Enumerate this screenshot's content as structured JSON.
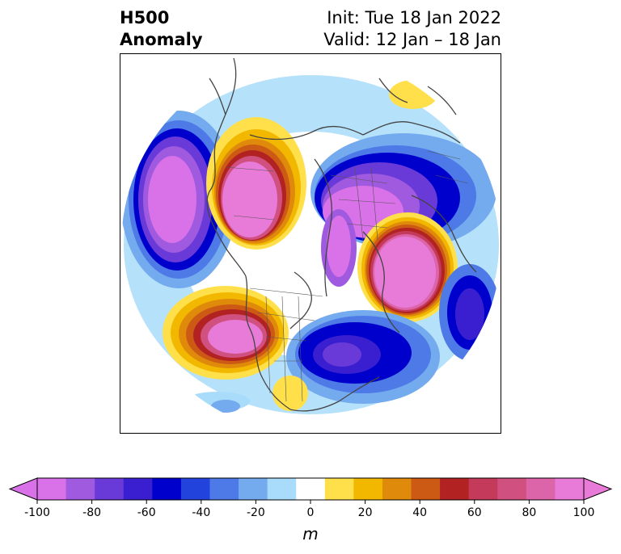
{
  "header": {
    "title_line1": "H500",
    "title_line2": "Anomaly",
    "init_text": "Init: Tue 18 Jan 2022",
    "valid_text": "Valid: 12 Jan – 18 Jan"
  },
  "map": {
    "projection": "north-polar-stereographic",
    "features": [
      {
        "name": "negative-anomaly-north-pacific",
        "kind": "low",
        "value_m": -100
      },
      {
        "name": "positive-anomaly-alaska-yukon",
        "kind": "high",
        "value_m": 100
      },
      {
        "name": "negative-anomaly-siberia",
        "kind": "low",
        "value_m": -100
      },
      {
        "name": "positive-anomaly-north-atlantic",
        "kind": "high",
        "value_m": 100
      },
      {
        "name": "positive-anomaly-western-usa",
        "kind": "high",
        "value_m": 100
      },
      {
        "name": "negative-anomaly-eastern-usa",
        "kind": "low",
        "value_m": -80
      },
      {
        "name": "negative-anomaly-western-europe",
        "kind": "low",
        "value_m": -80
      },
      {
        "name": "positive-anomaly-north-africa",
        "kind": "high",
        "value_m": 30
      }
    ]
  },
  "colorbar": {
    "unit": "m",
    "min": -100,
    "max": 100,
    "extend": "both",
    "boundaries": [
      -100,
      -90,
      -80,
      -70,
      -60,
      -50,
      -40,
      -30,
      -20,
      -10,
      10,
      20,
      30,
      40,
      50,
      60,
      70,
      80,
      90,
      100
    ],
    "colors": [
      "#d971e8",
      "#a05adf",
      "#6a3ad8",
      "#3a1fd0",
      "#0000cc",
      "#2244dd",
      "#4d7ae6",
      "#74aaee",
      "#a8dcfa",
      "#ffffff",
      "#ffe04a",
      "#f2b800",
      "#e08a0c",
      "#cc5a14",
      "#b22222",
      "#c43a5a",
      "#d05080",
      "#dc64a8",
      "#e87ad8"
    ],
    "under_color": "#d971e8",
    "over_color": "#e87ad8",
    "ticks": [
      "-100",
      "-80",
      "-60",
      "-40",
      "-20",
      "0",
      "20",
      "40",
      "60",
      "80",
      "100"
    ]
  }
}
